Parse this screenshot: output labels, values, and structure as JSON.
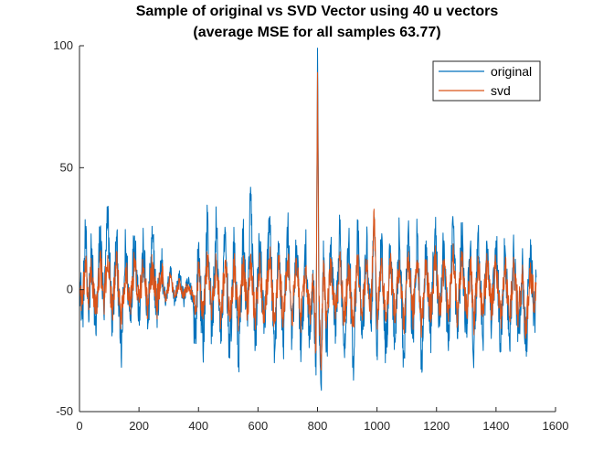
{
  "chart_data": {
    "type": "line",
    "title_line1": "Sample of original vs SVD Vector using 40 u vectors",
    "title_line2": "(average MSE for all samples 63.77)",
    "xlabel": "",
    "ylabel": "",
    "xlim": [
      0,
      1600
    ],
    "ylim": [
      -50,
      100
    ],
    "x_ticks": [
      0,
      200,
      400,
      600,
      800,
      1000,
      1200,
      1400,
      1600
    ],
    "y_ticks": [
      -50,
      0,
      50,
      100
    ],
    "legend": {
      "position": "top-right",
      "entries": [
        "original",
        "svd"
      ]
    },
    "grid": false,
    "n_samples": 1536,
    "series": [
      {
        "name": "original",
        "color": "#0072BD",
        "anchors": [
          [
            0,
            8
          ],
          [
            10,
            -12
          ],
          [
            20,
            22
          ],
          [
            30,
            -8
          ],
          [
            40,
            15
          ],
          [
            55,
            -18
          ],
          [
            70,
            25
          ],
          [
            82,
            -10
          ],
          [
            95,
            31
          ],
          [
            110,
            -15
          ],
          [
            125,
            20
          ],
          [
            140,
            -28
          ],
          [
            155,
            18
          ],
          [
            170,
            -12
          ],
          [
            185,
            22
          ],
          [
            200,
            -8
          ],
          [
            215,
            16
          ],
          [
            230,
            -14
          ],
          [
            245,
            21
          ],
          [
            260,
            -10
          ],
          [
            275,
            12
          ],
          [
            290,
            -6
          ],
          [
            305,
            9
          ],
          [
            320,
            -5
          ],
          [
            335,
            6
          ],
          [
            350,
            -4
          ],
          [
            365,
            3
          ],
          [
            380,
            -2
          ],
          [
            390,
            -20
          ],
          [
            400,
            18
          ],
          [
            415,
            -25
          ],
          [
            430,
            30
          ],
          [
            445,
            -18
          ],
          [
            460,
            26
          ],
          [
            475,
            -22
          ],
          [
            490,
            24
          ],
          [
            505,
            -28
          ],
          [
            520,
            18
          ],
          [
            535,
            -30
          ],
          [
            550,
            22
          ],
          [
            565,
            -15
          ],
          [
            575,
            42
          ],
          [
            590,
            -25
          ],
          [
            605,
            20
          ],
          [
            620,
            -18
          ],
          [
            640,
            30
          ],
          [
            655,
            -30
          ],
          [
            670,
            18
          ],
          [
            685,
            -22
          ],
          [
            700,
            25
          ],
          [
            715,
            -20
          ],
          [
            730,
            18
          ],
          [
            745,
            -25
          ],
          [
            760,
            16
          ],
          [
            775,
            -20
          ],
          [
            785,
            8
          ],
          [
            795,
            -35
          ],
          [
            800,
            99
          ],
          [
            805,
            -10
          ],
          [
            812,
            -40
          ],
          [
            820,
            20
          ],
          [
            830,
            -25
          ],
          [
            845,
            18
          ],
          [
            860,
            -22
          ],
          [
            875,
            23
          ],
          [
            890,
            -25
          ],
          [
            905,
            20
          ],
          [
            920,
            -30
          ],
          [
            935,
            22
          ],
          [
            950,
            -20
          ],
          [
            965,
            18
          ],
          [
            980,
            -15
          ],
          [
            990,
            27
          ],
          [
            1000,
            -22
          ],
          [
            1015,
            20
          ],
          [
            1030,
            -25
          ],
          [
            1045,
            18
          ],
          [
            1060,
            -20
          ],
          [
            1075,
            22
          ],
          [
            1090,
            -28
          ],
          [
            1105,
            25
          ],
          [
            1120,
            -20
          ],
          [
            1135,
            22
          ],
          [
            1150,
            -30
          ],
          [
            1165,
            20
          ],
          [
            1180,
            -18
          ],
          [
            1195,
            25
          ],
          [
            1210,
            -15
          ],
          [
            1225,
            20
          ],
          [
            1240,
            -25
          ],
          [
            1255,
            30
          ],
          [
            1270,
            -20
          ],
          [
            1285,
            22
          ],
          [
            1300,
            -18
          ],
          [
            1315,
            20
          ],
          [
            1325,
            -32
          ],
          [
            1340,
            24
          ],
          [
            1355,
            -20
          ],
          [
            1370,
            18
          ],
          [
            1385,
            -15
          ],
          [
            1400,
            20
          ],
          [
            1415,
            -22
          ],
          [
            1430,
            18
          ],
          [
            1445,
            -20
          ],
          [
            1460,
            15
          ],
          [
            1475,
            -18
          ],
          [
            1490,
            10
          ],
          [
            1500,
            -25
          ],
          [
            1515,
            14
          ],
          [
            1530,
            -12
          ],
          [
            1535,
            5
          ]
        ]
      },
      {
        "name": "svd",
        "color": "#D95319",
        "anchors": [
          [
            0,
            2
          ],
          [
            10,
            -6
          ],
          [
            20,
            10
          ],
          [
            30,
            -5
          ],
          [
            40,
            8
          ],
          [
            55,
            -10
          ],
          [
            70,
            12
          ],
          [
            82,
            -6
          ],
          [
            95,
            14
          ],
          [
            110,
            -8
          ],
          [
            125,
            10
          ],
          [
            140,
            -12
          ],
          [
            155,
            9
          ],
          [
            170,
            -7
          ],
          [
            185,
            11
          ],
          [
            200,
            -5
          ],
          [
            215,
            9
          ],
          [
            230,
            -8
          ],
          [
            245,
            10
          ],
          [
            260,
            -6
          ],
          [
            275,
            7
          ],
          [
            290,
            -4
          ],
          [
            305,
            5
          ],
          [
            320,
            -3
          ],
          [
            335,
            3
          ],
          [
            350,
            -2
          ],
          [
            365,
            2
          ],
          [
            380,
            -1
          ],
          [
            390,
            -10
          ],
          [
            400,
            10
          ],
          [
            415,
            -12
          ],
          [
            430,
            14
          ],
          [
            445,
            -10
          ],
          [
            460,
            12
          ],
          [
            475,
            -11
          ],
          [
            490,
            12
          ],
          [
            505,
            -13
          ],
          [
            520,
            10
          ],
          [
            535,
            -14
          ],
          [
            550,
            11
          ],
          [
            565,
            -9
          ],
          [
            575,
            14
          ],
          [
            590,
            -12
          ],
          [
            605,
            10
          ],
          [
            620,
            -10
          ],
          [
            640,
            14
          ],
          [
            655,
            -14
          ],
          [
            670,
            10
          ],
          [
            685,
            -12
          ],
          [
            700,
            12
          ],
          [
            715,
            -10
          ],
          [
            730,
            10
          ],
          [
            745,
            -12
          ],
          [
            760,
            9
          ],
          [
            775,
            -12
          ],
          [
            785,
            5
          ],
          [
            795,
            -25
          ],
          [
            800,
            89
          ],
          [
            805,
            -5
          ],
          [
            812,
            -33
          ],
          [
            820,
            12
          ],
          [
            830,
            -14
          ],
          [
            845,
            10
          ],
          [
            860,
            -12
          ],
          [
            875,
            12
          ],
          [
            890,
            -13
          ],
          [
            905,
            10
          ],
          [
            920,
            -15
          ],
          [
            935,
            12
          ],
          [
            950,
            -10
          ],
          [
            965,
            10
          ],
          [
            980,
            -9
          ],
          [
            990,
            33
          ],
          [
            1000,
            -12
          ],
          [
            1015,
            11
          ],
          [
            1030,
            -13
          ],
          [
            1045,
            10
          ],
          [
            1060,
            -11
          ],
          [
            1075,
            12
          ],
          [
            1090,
            -14
          ],
          [
            1105,
            13
          ],
          [
            1120,
            -11
          ],
          [
            1135,
            12
          ],
          [
            1150,
            -15
          ],
          [
            1165,
            11
          ],
          [
            1180,
            -10
          ],
          [
            1195,
            13
          ],
          [
            1210,
            -9
          ],
          [
            1225,
            11
          ],
          [
            1240,
            -13
          ],
          [
            1255,
            14
          ],
          [
            1270,
            -11
          ],
          [
            1285,
            12
          ],
          [
            1300,
            -10
          ],
          [
            1315,
            11
          ],
          [
            1325,
            -15
          ],
          [
            1340,
            12
          ],
          [
            1355,
            -11
          ],
          [
            1370,
            10
          ],
          [
            1385,
            -9
          ],
          [
            1400,
            11
          ],
          [
            1415,
            -12
          ],
          [
            1430,
            10
          ],
          [
            1445,
            -11
          ],
          [
            1460,
            9
          ],
          [
            1475,
            -10
          ],
          [
            1490,
            6
          ],
          [
            1500,
            -20
          ],
          [
            1515,
            8
          ],
          [
            1530,
            -7
          ],
          [
            1535,
            3
          ]
        ]
      }
    ]
  }
}
